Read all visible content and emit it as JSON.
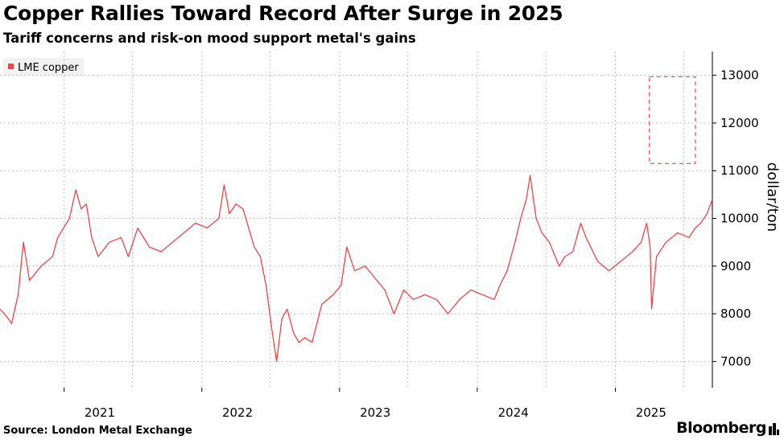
{
  "header": {
    "title": "Copper Rallies Toward Record After Surge in 2025",
    "subtitle": "Tariff concerns and risk-on mood support metal's gains"
  },
  "footer": {
    "source": "Source: London Metal Exchange",
    "brand": "Bloomberg"
  },
  "colors": {
    "series": "#e8474a",
    "grid": "#bfbfbf",
    "highlight": "#e8474a",
    "legend_bg": "#f2f2f2"
  },
  "chart_data": {
    "type": "line",
    "title": "Copper Rallies Toward Record After Surge in 2025",
    "subtitle": "Tariff concerns and risk-on mood support metal's gains",
    "ylabel": "dollar/ton",
    "xlabel": "",
    "y_axis_side": "right",
    "ylim": [
      6450,
      13500
    ],
    "yticks": [
      7000,
      8000,
      9000,
      10000,
      11000,
      12000,
      13000
    ],
    "xlim": [
      "2020-07-15",
      "2025-09-15"
    ],
    "xticks": [
      {
        "label": "2021",
        "date": "2021-01-01"
      },
      {
        "label": "2022",
        "date": "2022-01-01"
      },
      {
        "label": "2023",
        "date": "2023-01-01"
      },
      {
        "label": "2024",
        "date": "2024-01-01"
      },
      {
        "label": "2025",
        "date": "2025-01-01"
      }
    ],
    "grid": true,
    "legend_position": "top-left",
    "highlight_box": {
      "x": [
        "2025-04-01",
        "2025-08-01"
      ],
      "y": [
        11150,
        12970
      ]
    },
    "series": [
      {
        "name": "LME copper",
        "points": [
          [
            "2020-07-15",
            8100
          ],
          [
            "2020-08-01",
            7950
          ],
          [
            "2020-08-15",
            7800
          ],
          [
            "2020-09-01",
            8400
          ],
          [
            "2020-09-15",
            9500
          ],
          [
            "2020-10-01",
            8700
          ],
          [
            "2020-11-01",
            9000
          ],
          [
            "2020-12-01",
            9200
          ],
          [
            "2020-12-15",
            9600
          ],
          [
            "2021-01-15",
            10000
          ],
          [
            "2021-02-01",
            10600
          ],
          [
            "2021-02-15",
            10200
          ],
          [
            "2021-03-01",
            10300
          ],
          [
            "2021-03-15",
            9600
          ],
          [
            "2021-04-01",
            9200
          ],
          [
            "2021-05-01",
            9500
          ],
          [
            "2021-06-01",
            9600
          ],
          [
            "2021-06-20",
            9200
          ],
          [
            "2021-07-15",
            9800
          ],
          [
            "2021-08-15",
            9400
          ],
          [
            "2021-09-15",
            9300
          ],
          [
            "2021-10-15",
            9500
          ],
          [
            "2021-11-15",
            9700
          ],
          [
            "2021-12-15",
            9900
          ],
          [
            "2022-01-15",
            9800
          ],
          [
            "2022-02-15",
            10000
          ],
          [
            "2022-03-01",
            10700
          ],
          [
            "2022-03-15",
            10100
          ],
          [
            "2022-04-01",
            10300
          ],
          [
            "2022-04-20",
            10200
          ],
          [
            "2022-05-05",
            9800
          ],
          [
            "2022-05-20",
            9400
          ],
          [
            "2022-06-05",
            9200
          ],
          [
            "2022-06-20",
            8600
          ],
          [
            "2022-07-05",
            7700
          ],
          [
            "2022-07-18",
            7000
          ],
          [
            "2022-08-01",
            7900
          ],
          [
            "2022-08-15",
            8100
          ],
          [
            "2022-09-01",
            7600
          ],
          [
            "2022-09-15",
            7400
          ],
          [
            "2022-10-01",
            7500
          ],
          [
            "2022-10-20",
            7400
          ],
          [
            "2022-11-15",
            8200
          ],
          [
            "2022-12-15",
            8400
          ],
          [
            "2023-01-05",
            8600
          ],
          [
            "2023-01-20",
            9400
          ],
          [
            "2023-02-10",
            8900
          ],
          [
            "2023-03-10",
            9000
          ],
          [
            "2023-04-10",
            8700
          ],
          [
            "2023-05-01",
            8500
          ],
          [
            "2023-05-25",
            8000
          ],
          [
            "2023-06-20",
            8500
          ],
          [
            "2023-07-15",
            8300
          ],
          [
            "2023-08-15",
            8400
          ],
          [
            "2023-09-15",
            8300
          ],
          [
            "2023-10-15",
            8000
          ],
          [
            "2023-11-15",
            8300
          ],
          [
            "2023-12-15",
            8500
          ],
          [
            "2024-01-15",
            8400
          ],
          [
            "2024-02-15",
            8300
          ],
          [
            "2024-03-01",
            8600
          ],
          [
            "2024-03-20",
            8900
          ],
          [
            "2024-04-10",
            9500
          ],
          [
            "2024-04-25",
            10000
          ],
          [
            "2024-05-10",
            10400
          ],
          [
            "2024-05-20",
            10900
          ],
          [
            "2024-06-05",
            10000
          ],
          [
            "2024-06-20",
            9700
          ],
          [
            "2024-07-10",
            9500
          ],
          [
            "2024-08-05",
            9000
          ],
          [
            "2024-08-20",
            9200
          ],
          [
            "2024-09-10",
            9300
          ],
          [
            "2024-10-01",
            9900
          ],
          [
            "2024-10-15",
            9600
          ],
          [
            "2024-11-15",
            9100
          ],
          [
            "2024-12-15",
            8900
          ],
          [
            "2025-01-15",
            9100
          ],
          [
            "2025-02-15",
            9300
          ],
          [
            "2025-03-10",
            9500
          ],
          [
            "2025-03-25",
            9900
          ],
          [
            "2025-04-03",
            9400
          ],
          [
            "2025-04-07",
            8100
          ],
          [
            "2025-04-20",
            9200
          ],
          [
            "2025-05-15",
            9500
          ],
          [
            "2025-06-15",
            9700
          ],
          [
            "2025-07-15",
            9600
          ],
          [
            "2025-08-01",
            9800
          ],
          [
            "2025-08-15",
            9900
          ],
          [
            "2025-09-01",
            10100
          ],
          [
            "2025-09-15",
            10400
          ]
        ]
      }
    ]
  },
  "notes": ""
}
